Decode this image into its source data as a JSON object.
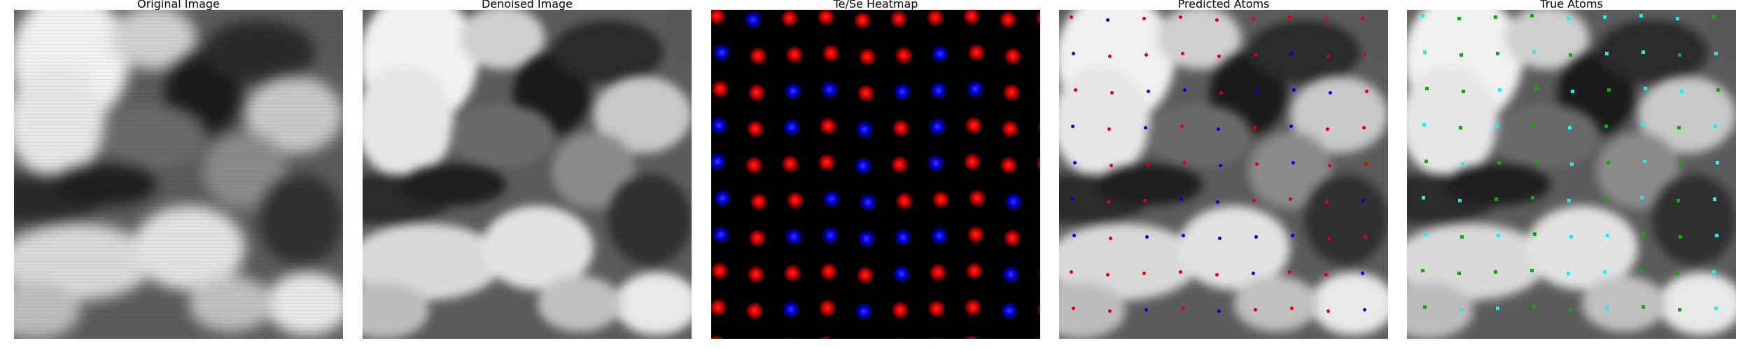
{
  "panels": [
    {
      "title": "Original Image"
    },
    {
      "title": "Denoised Image"
    },
    {
      "title": "Te/Se Heatmap"
    },
    {
      "title": "Predicted Atoms"
    },
    {
      "title": "True Atoms"
    }
  ],
  "colors": {
    "te": "#e00000",
    "se": "#0000dd",
    "true_a": "#1aa01a",
    "true_b": "#33e6e6"
  },
  "atom_grid": {
    "rows": [
      "RBRRRRRRRR",
      "BRRRRRBRRR",
      "RRBBRBBBRR",
      "BRBRBRBRRR",
      "BRRRBRBRRR",
      "BRRBBRRRBB",
      "BRBBBBBRRB",
      "RRRRRBRRBR",
      "RRBRBRRRBR",
      "RRBRRRBRRR"
    ],
    "true_rows": [
      "CGGGCCCCGG",
      "CGGCGCCGCG",
      "GGCGCGCCGG",
      "CGCGCGCGCG",
      "GCGGCGCGCG",
      "CCGGCGCGCG",
      "CGCGCCGGCG",
      "GGGGCCGGCG",
      "GCCGGCGGCG",
      "GGCGGCCGGG"
    ]
  }
}
